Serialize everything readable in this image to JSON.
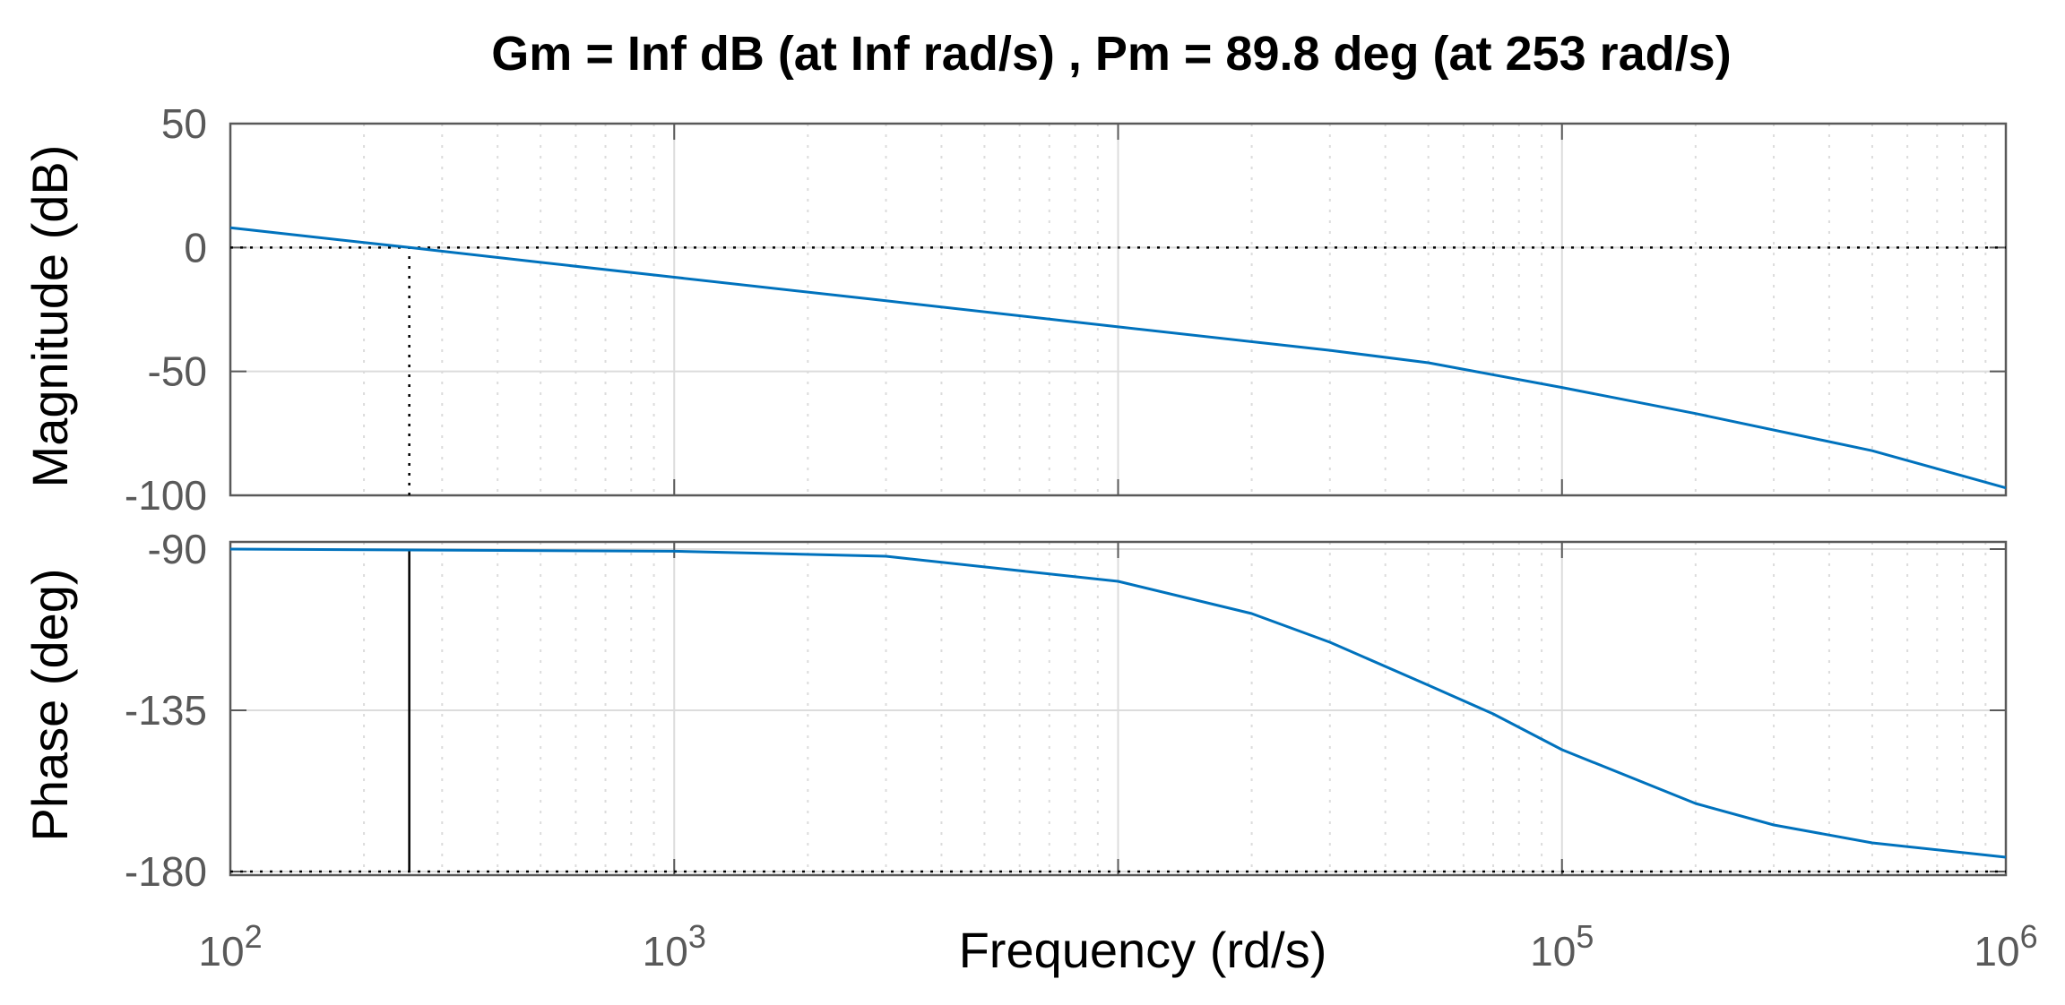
{
  "chart_data": {
    "type": "line",
    "title": "Gm = Inf dB (at Inf rad/s) ,  Pm = 89.8 deg (at 253 rad/s)",
    "xlabel": "Frequency (rd/s)",
    "xscale": "log",
    "xlim": [
      100,
      1000000
    ],
    "x_tick_labels": [
      {
        "value": 100,
        "base": "10",
        "exp": "2"
      },
      {
        "value": 1000,
        "base": "10",
        "exp": "3"
      },
      {
        "value": 100000,
        "base": "10",
        "exp": "5"
      },
      {
        "value": 1000000,
        "base": "10",
        "exp": "6"
      }
    ],
    "grid": true,
    "legend": "none",
    "colors": {
      "curve": "#0072BD",
      "margin": "#000000",
      "grid": "#dcdcdc",
      "axes": "#595959"
    },
    "panels": [
      {
        "name": "magnitude",
        "ylabel": "Magnitude (dB)",
        "ylim": [
          -100,
          50
        ],
        "yticks": [
          50,
          0,
          -50,
          -100
        ],
        "ytick_labels": [
          "50",
          "0",
          "-50",
          "-100"
        ],
        "reference_line": 0,
        "margin_marker": {
          "x": 253,
          "from": -100,
          "to": 0
        },
        "series": [
          {
            "x": [
              100,
              200,
              253,
              500,
              1000,
              3000,
              10000,
              30000,
              50000,
              100000,
              200000,
              500000,
              1000000
            ],
            "values": [
              8,
              2,
              0,
              -6,
              -12,
              -21.5,
              -32,
              -41.5,
              -46.5,
              -56.5,
              -67,
              -82,
              -97
            ]
          }
        ]
      },
      {
        "name": "phase",
        "ylabel": "Phase (deg)",
        "ylim": [
          -181,
          -88
        ],
        "yticks": [
          -90,
          -135,
          -180
        ],
        "ytick_labels": [
          "-90",
          "-135",
          "-180"
        ],
        "reference_line": -180,
        "margin_marker": {
          "x": 253,
          "from": -180,
          "to": -90.2
        },
        "series": [
          {
            "x": [
              100,
              1000,
              3000,
              10000,
              20000,
              30000,
              50000,
              70000,
              100000,
              200000,
              300000,
              500000,
              1000000
            ],
            "values": [
              -90,
              -90.6,
              -92,
              -99,
              -108,
              -116,
              -128,
              -136,
              -146,
              -161,
              -167,
              -172,
              -176
            ]
          }
        ]
      }
    ]
  }
}
